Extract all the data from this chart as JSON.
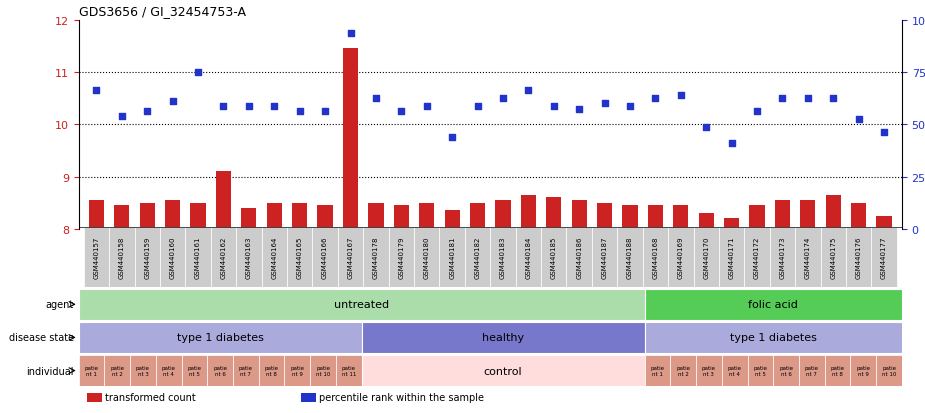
{
  "title": "GDS3656 / GI_32454753-A",
  "samples": [
    "GSM440157",
    "GSM440158",
    "GSM440159",
    "GSM440160",
    "GSM440161",
    "GSM440162",
    "GSM440163",
    "GSM440164",
    "GSM440165",
    "GSM440166",
    "GSM440167",
    "GSM440178",
    "GSM440179",
    "GSM440180",
    "GSM440181",
    "GSM440182",
    "GSM440183",
    "GSM440184",
    "GSM440185",
    "GSM440186",
    "GSM440187",
    "GSM440188",
    "GSM440168",
    "GSM440169",
    "GSM440170",
    "GSM440171",
    "GSM440172",
    "GSM440173",
    "GSM440174",
    "GSM440175",
    "GSM440176",
    "GSM440177"
  ],
  "bar_values": [
    8.55,
    8.45,
    8.5,
    8.55,
    8.5,
    9.1,
    8.4,
    8.5,
    8.5,
    8.45,
    11.45,
    8.5,
    8.45,
    8.5,
    8.35,
    8.5,
    8.55,
    8.65,
    8.6,
    8.55,
    8.5,
    8.45,
    8.45,
    8.45,
    8.3,
    8.2,
    8.45,
    8.55,
    8.55,
    8.65,
    8.5,
    8.25
  ],
  "scatter_values": [
    10.65,
    10.15,
    10.25,
    10.45,
    11.0,
    10.35,
    10.35,
    10.35,
    10.25,
    10.25,
    11.75,
    10.5,
    10.25,
    10.35,
    9.75,
    10.35,
    10.5,
    10.65,
    10.35,
    10.3,
    10.4,
    10.35,
    10.5,
    10.55,
    9.95,
    9.65,
    10.25,
    10.5,
    10.5,
    10.5,
    10.1,
    9.85
  ],
  "ylim": [
    8.0,
    12.0
  ],
  "yticks": [
    8,
    9,
    10,
    11,
    12
  ],
  "bar_color": "#CC2222",
  "scatter_color": "#2233CC",
  "agent_sections": [
    {
      "label": "untreated",
      "start": 0,
      "end": 22,
      "color": "#AADDAA"
    },
    {
      "label": "folic acid",
      "start": 22,
      "end": 32,
      "color": "#55CC55"
    }
  ],
  "disease_sections": [
    {
      "label": "type 1 diabetes",
      "start": 0,
      "end": 11,
      "color": "#AAAADD"
    },
    {
      "label": "healthy",
      "start": 11,
      "end": 22,
      "color": "#7777CC"
    },
    {
      "label": "type 1 diabetes",
      "start": 22,
      "end": 32,
      "color": "#AAAADD"
    }
  ],
  "individual_sections": [
    {
      "labels": [
        "patie\nnt 1",
        "patie\nnt 2",
        "patie\nnt 3",
        "patie\nnt 4",
        "patie\nnt 5",
        "patie\nnt 6",
        "patie\nnt 7",
        "patie\nnt 8",
        "patie\nnt 9",
        "patie\nnt 10",
        "patie\nnt 11"
      ],
      "start": 0,
      "end": 11,
      "color": "#DD9988"
    },
    {
      "labels": [
        "control"
      ],
      "start": 11,
      "end": 22,
      "color": "#FFDDDD"
    },
    {
      "labels": [
        "patie\nnt 1",
        "patie\nnt 2",
        "patie\nnt 3",
        "patie\nnt 4",
        "patie\nnt 5",
        "patie\nnt 6",
        "patie\nnt 7",
        "patie\nnt 8",
        "patie\nnt 9",
        "patie\nnt 10"
      ],
      "start": 22,
      "end": 32,
      "color": "#DD9988"
    }
  ],
  "row_labels": [
    "agent",
    "disease state",
    "individual"
  ],
  "legend_items": [
    {
      "color": "#CC2222",
      "label": "transformed count"
    },
    {
      "color": "#2233CC",
      "label": "percentile rank within the sample"
    }
  ]
}
